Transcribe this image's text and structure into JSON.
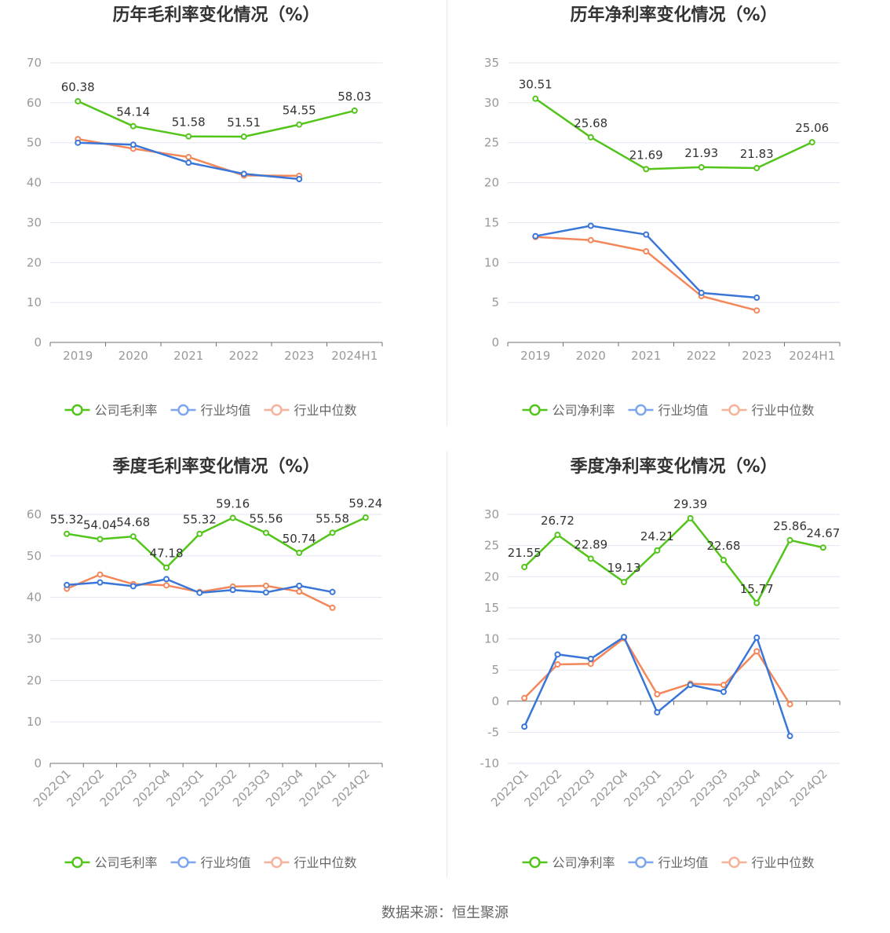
{
  "source": "数据来源：恒生聚源",
  "colors": {
    "company": "#52c41a",
    "avg": "#3a76d8",
    "median": "#f4875a",
    "legend_avg": "#7da6ee",
    "legend_median": "#f7b29a"
  },
  "chart_data": [
    {
      "type": "line",
      "title": "历年毛利率变化情况（%）",
      "categories": [
        "2019",
        "2020",
        "2021",
        "2022",
        "2023",
        "2024H1"
      ],
      "ylim": [
        0,
        70
      ],
      "yticks": [
        "0",
        "10",
        "20",
        "30",
        "40",
        "50",
        "60",
        "70"
      ],
      "rotate_x": false,
      "legend": [
        "公司毛利率",
        "行业均值",
        "行业中位数"
      ],
      "series": [
        {
          "name": "公司毛利率",
          "values": [
            60.38,
            54.14,
            51.58,
            51.51,
            54.55,
            58.03
          ],
          "labels": [
            "60.38",
            "54.14",
            "51.58",
            "51.51",
            "54.55",
            "58.03"
          ]
        },
        {
          "name": "行业均值",
          "values": [
            50.0,
            49.5,
            45.0,
            42.2,
            40.9,
            null
          ]
        },
        {
          "name": "行业中位数",
          "values": [
            50.9,
            48.5,
            46.4,
            41.8,
            41.7,
            null
          ]
        }
      ]
    },
    {
      "type": "line",
      "title": "历年净利率变化情况（%）",
      "categories": [
        "2019",
        "2020",
        "2021",
        "2022",
        "2023",
        "2024H1"
      ],
      "ylim": [
        0,
        35
      ],
      "yticks": [
        "0",
        "5",
        "10",
        "15",
        "20",
        "25",
        "30",
        "35"
      ],
      "rotate_x": false,
      "legend": [
        "公司净利率",
        "行业均值",
        "行业中位数"
      ],
      "series": [
        {
          "name": "公司净利率",
          "values": [
            30.51,
            25.68,
            21.69,
            21.93,
            21.83,
            25.06
          ],
          "labels": [
            "30.51",
            "25.68",
            "21.69",
            "21.93",
            "21.83",
            "25.06"
          ]
        },
        {
          "name": "行业均值",
          "values": [
            13.3,
            14.6,
            13.5,
            6.2,
            5.6,
            null
          ]
        },
        {
          "name": "行业中位数",
          "values": [
            13.2,
            12.8,
            11.4,
            5.8,
            4.0,
            null
          ]
        }
      ]
    },
    {
      "type": "line",
      "title": "季度毛利率变化情况（%）",
      "categories": [
        "2022Q1",
        "2022Q2",
        "2022Q3",
        "2022Q4",
        "2023Q1",
        "2023Q2",
        "2023Q3",
        "2023Q4",
        "2024Q1",
        "2024Q2"
      ],
      "ylim": [
        0,
        60
      ],
      "yticks": [
        "0",
        "10",
        "20",
        "30",
        "40",
        "50",
        "60"
      ],
      "rotate_x": true,
      "legend": [
        "公司毛利率",
        "行业均值",
        "行业中位数"
      ],
      "series": [
        {
          "name": "公司毛利率",
          "values": [
            55.32,
            54.04,
            54.68,
            47.18,
            55.32,
            59.16,
            55.56,
            50.74,
            55.58,
            59.24
          ],
          "labels": [
            "55.32",
            "54.04",
            "54.68",
            "47.18",
            "55.32",
            "59.16",
            "55.56",
            "50.74",
            "55.58",
            "59.24"
          ]
        },
        {
          "name": "行业均值",
          "values": [
            43.0,
            43.6,
            42.7,
            44.4,
            41.1,
            41.8,
            41.2,
            42.8,
            41.3,
            null
          ]
        },
        {
          "name": "行业中位数",
          "values": [
            42.1,
            45.5,
            43.2,
            42.9,
            41.3,
            42.6,
            42.8,
            41.4,
            37.5,
            null
          ]
        }
      ]
    },
    {
      "type": "line",
      "title": "季度净利率变化情况（%）",
      "categories": [
        "2022Q1",
        "2022Q2",
        "2022Q3",
        "2022Q4",
        "2023Q1",
        "2023Q2",
        "2023Q3",
        "2023Q4",
        "2024Q1",
        "2024Q2"
      ],
      "ylim": [
        -10,
        30
      ],
      "yticks": [
        "-10",
        "-5",
        "0",
        "5",
        "10",
        "15",
        "20",
        "25",
        "30"
      ],
      "rotate_x": true,
      "legend": [
        "公司净利率",
        "行业均值",
        "行业中位数"
      ],
      "series": [
        {
          "name": "公司净利率",
          "values": [
            21.55,
            26.72,
            22.89,
            19.13,
            24.21,
            29.39,
            22.68,
            15.77,
            25.86,
            24.67
          ],
          "labels": [
            "21.55",
            "26.72",
            "22.89",
            "19.13",
            "24.21",
            "29.39",
            "22.68",
            "15.77",
            "25.86",
            "24.67"
          ]
        },
        {
          "name": "行业均值",
          "values": [
            -4.1,
            7.5,
            6.8,
            10.3,
            -1.8,
            2.6,
            1.5,
            10.2,
            -5.6,
            null
          ]
        },
        {
          "name": "行业中位数",
          "values": [
            0.5,
            5.9,
            6.0,
            10.1,
            1.1,
            2.8,
            2.6,
            8.0,
            -0.5,
            null
          ]
        }
      ]
    }
  ]
}
